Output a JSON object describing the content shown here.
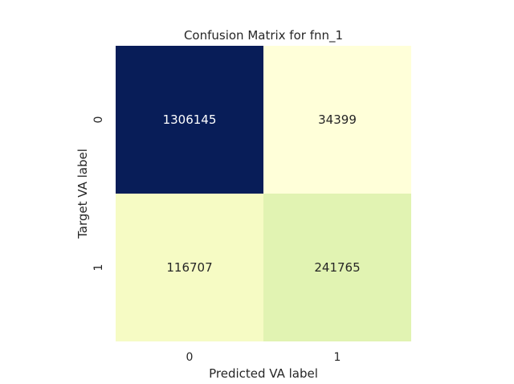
{
  "chart_data": {
    "type": "heatmap",
    "title": "Confusion Matrix for fnn_1",
    "xlabel": "Predicted VA label",
    "ylabel": "Target VA label",
    "x_categories": [
      "0",
      "1"
    ],
    "y_categories": [
      "0",
      "1"
    ],
    "values": [
      [
        1306145,
        34399
      ],
      [
        116707,
        241765
      ]
    ],
    "labels": [
      [
        "1306145",
        "34399"
      ],
      [
        "116707",
        "241765"
      ]
    ],
    "colormap": "YlGnBu",
    "colorbar": false,
    "grid": false
  }
}
